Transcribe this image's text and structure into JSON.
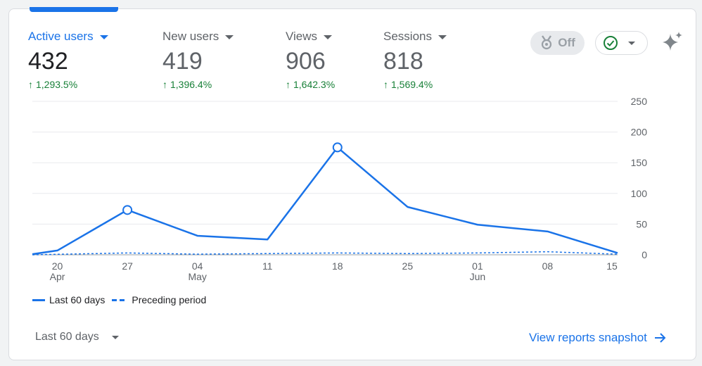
{
  "metrics": [
    {
      "label": "Active users",
      "value": "432",
      "change": "1,293.5%",
      "active": true
    },
    {
      "label": "New users",
      "value": "419",
      "change": "1,396.4%",
      "active": false
    },
    {
      "label": "Views",
      "value": "906",
      "change": "1,642.3%",
      "active": false
    },
    {
      "label": "Sessions",
      "value": "818",
      "change": "1,569.4%",
      "active": false
    }
  ],
  "toggle": {
    "label": "Off"
  },
  "colors": {
    "primary": "#1a73e8",
    "positive": "#188038",
    "muted": "#5f6368"
  },
  "chart_data": {
    "type": "line",
    "title": "Active users",
    "x_labels": [
      "20",
      "27",
      "04",
      "11",
      "18",
      "25",
      "01",
      "08",
      "15"
    ],
    "x_sublabels": [
      "Apr",
      "",
      "May",
      "",
      "",
      "",
      "Jun",
      "",
      ""
    ],
    "y_ticks": [
      "0",
      "50",
      "100",
      "150",
      "200",
      "250"
    ],
    "ylim": [
      0,
      250
    ],
    "series": [
      {
        "name": "Last 60 days",
        "style": "solid",
        "x": [
          -2.5,
          0,
          7,
          14,
          21,
          28,
          35,
          42,
          49,
          56
        ],
        "values": [
          1,
          7,
          73,
          31,
          25,
          175,
          78,
          49,
          38,
          3
        ],
        "markers": [
          2,
          5
        ]
      },
      {
        "name": "Preceding period",
        "style": "dashed",
        "x": [
          -2.5,
          7,
          14,
          21,
          28,
          35,
          42,
          49,
          56
        ],
        "values": [
          0,
          3,
          1,
          2,
          3,
          2,
          3,
          5,
          1
        ]
      }
    ]
  },
  "legend": {
    "last": "Last 60 days",
    "preceding": "Preceding period"
  },
  "range": {
    "label": "Last 60 days"
  },
  "view_link": {
    "label": "View reports snapshot"
  }
}
